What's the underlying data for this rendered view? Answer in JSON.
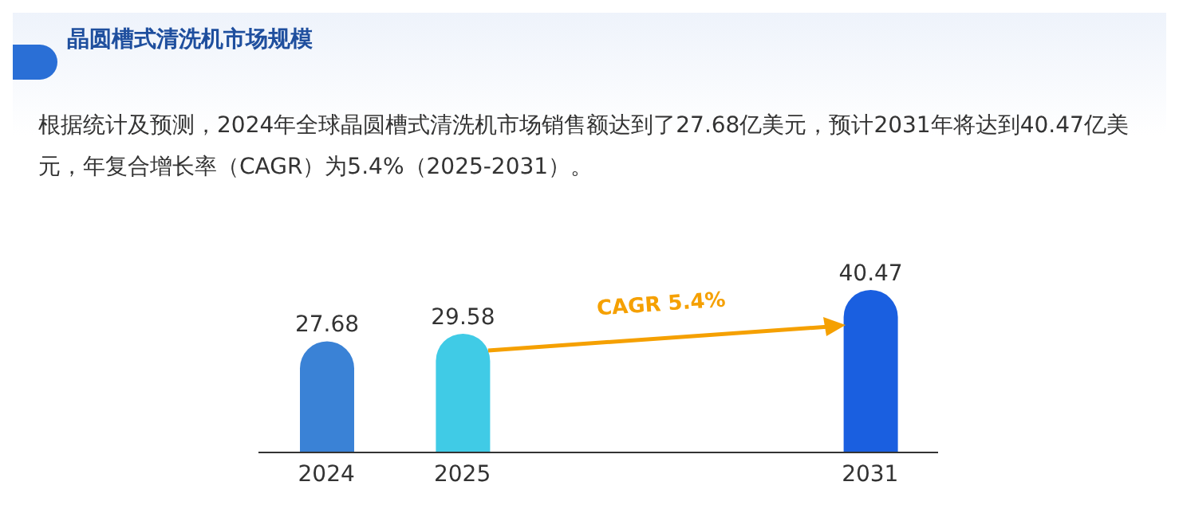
{
  "chart_data": {
    "type": "bar",
    "title": "晶圆槽式清洗机市场规模",
    "subtitle": "根据统计及预测，2024年全球晶圆槽式清洗机市场销售额达到了27.68亿美元，预计2031年将达到40.47亿美元，年复合增长率（CAGR）为5.4%（2025-2031）。",
    "categories": [
      "2024",
      "2025",
      null,
      null,
      "2031"
    ],
    "values": [
      27.68,
      29.58,
      null,
      null,
      40.47
    ],
    "colors": [
      "#3a82d6",
      "#40cbe6",
      "#3a82d6",
      "#3a82d6",
      "#1a5fe0"
    ],
    "data_labels": true,
    "annotations": [
      "CAGR 5.4%"
    ]
  }
}
